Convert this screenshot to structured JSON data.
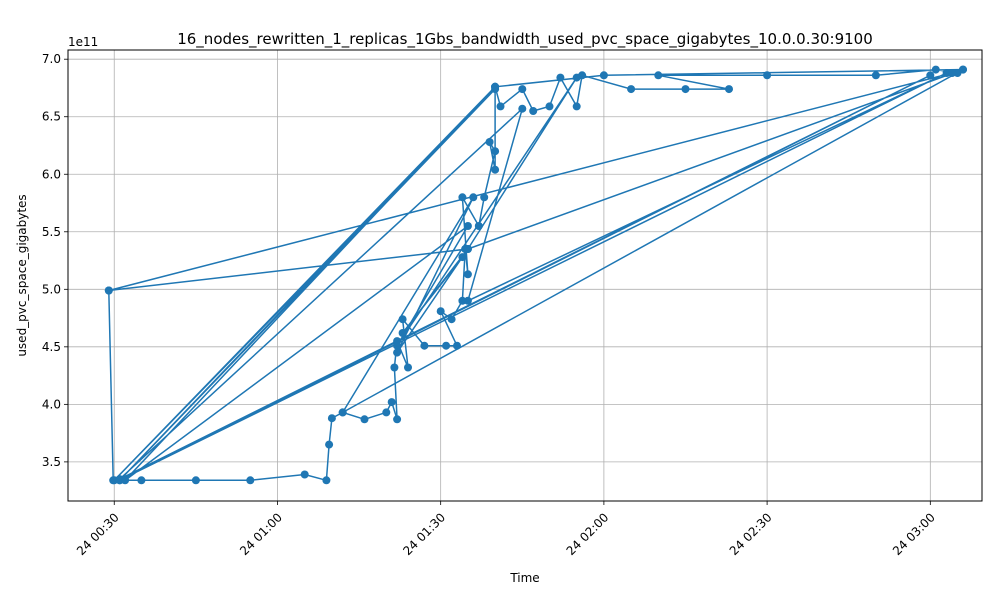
{
  "chart_data": {
    "type": "line",
    "title": "16_nodes_rewritten_1_replicas_1Gbs_bandwidth_used_pvc_space_gigabytes_10.0.0.30:9100",
    "xlabel": "Time",
    "ylabel": "used_pvc_space_gigabytes",
    "y_offset_text": "1e11",
    "y_scale": 100000000000.0,
    "xlim": [
      "00:21:30",
      "03:09:30"
    ],
    "ylim": [
      3.16,
      7.08
    ],
    "grid": true,
    "x_ticks": [
      {
        "t": "00:30",
        "label": "24 00:30"
      },
      {
        "t": "01:00",
        "label": "24 01:00"
      },
      {
        "t": "01:30",
        "label": "24 01:30"
      },
      {
        "t": "02:00",
        "label": "24 02:00"
      },
      {
        "t": "02:30",
        "label": "24 02:30"
      },
      {
        "t": "03:00",
        "label": "24 03:00"
      }
    ],
    "y_ticks": [
      {
        "v": 3.5,
        "label": "3.5"
      },
      {
        "v": 4.0,
        "label": "4.0"
      },
      {
        "v": 4.5,
        "label": "4.5"
      },
      {
        "v": 5.0,
        "label": "5.0"
      },
      {
        "v": 5.5,
        "label": "5.5"
      },
      {
        "v": 6.0,
        "label": "6.0"
      },
      {
        "v": 6.5,
        "label": "6.5"
      },
      {
        "v": 7.0,
        "label": "7.0"
      }
    ],
    "series": [
      {
        "color": "#1f77b4",
        "marker": "circle",
        "points": [
          [
            "00:29:00",
            4.99
          ],
          [
            "00:29:48",
            3.34
          ],
          [
            "00:35:00",
            3.34
          ],
          [
            "00:45:00",
            3.34
          ],
          [
            "00:55:00",
            3.34
          ],
          [
            "01:05:00",
            3.39
          ],
          [
            "01:09:00",
            3.34
          ],
          [
            "01:09:30",
            3.65
          ],
          [
            "01:10:00",
            3.88
          ],
          [
            "01:12:00",
            3.93
          ],
          [
            "01:16:00",
            3.87
          ],
          [
            "01:20:00",
            3.93
          ],
          [
            "01:21:00",
            4.02
          ],
          [
            "01:22:00",
            3.87
          ],
          [
            "01:21:30",
            4.32
          ],
          [
            "01:22:00",
            4.55
          ],
          [
            "01:24:00",
            4.32
          ],
          [
            "01:23:00",
            4.74
          ],
          [
            "01:27:00",
            4.51
          ],
          [
            "01:31:00",
            4.51
          ],
          [
            "01:33:00",
            4.51
          ],
          [
            "01:30:00",
            4.81
          ],
          [
            "01:32:00",
            4.74
          ],
          [
            "01:34:00",
            4.9
          ],
          [
            "01:34:30",
            5.35
          ],
          [
            "01:35:00",
            5.13
          ],
          [
            "01:34:00",
            5.8
          ],
          [
            "01:37:00",
            5.55
          ],
          [
            "01:38:00",
            5.8
          ],
          [
            "01:40:00",
            6.2
          ],
          [
            "01:39:00",
            6.28
          ],
          [
            "01:40:00",
            6.04
          ],
          [
            "01:40:00",
            6.76
          ],
          [
            "01:41:00",
            6.59
          ],
          [
            "01:45:00",
            6.74
          ],
          [
            "01:47:00",
            6.55
          ],
          [
            "01:50:00",
            6.59
          ],
          [
            "01:52:00",
            6.84
          ],
          [
            "01:55:00",
            6.59
          ],
          [
            "01:56:00",
            6.86
          ],
          [
            "02:05:00",
            6.74
          ],
          [
            "02:15:00",
            6.74
          ],
          [
            "02:23:00",
            6.74
          ],
          [
            "02:10:00",
            6.86
          ],
          [
            "02:30:00",
            6.86
          ],
          [
            "02:50:00",
            6.86
          ],
          [
            "03:01:00",
            6.91
          ],
          [
            "03:05:00",
            6.88
          ],
          [
            "03:06:00",
            6.91
          ],
          [
            "02:00:00",
            6.86
          ],
          [
            "01:40:00",
            6.76
          ],
          [
            "00:30:00",
            3.34
          ],
          [
            "01:40:00",
            6.74
          ],
          [
            "00:31:00",
            3.34
          ],
          [
            "03:03:00",
            6.88
          ],
          [
            "01:35:00",
            4.9
          ],
          [
            "01:45:00",
            6.57
          ],
          [
            "00:31:00",
            3.35
          ],
          [
            "03:00:00",
            6.86
          ],
          [
            "00:31:00",
            3.34
          ],
          [
            "01:40:00",
            6.76
          ],
          [
            "00:32:00",
            3.34
          ],
          [
            "01:35:00",
            5.55
          ],
          [
            "01:22:00",
            4.51
          ],
          [
            "01:55:00",
            6.84
          ],
          [
            "01:35:00",
            5.35
          ],
          [
            "03:06:00",
            6.91
          ],
          [
            "01:12:00",
            3.93
          ],
          [
            "01:36:00",
            5.8
          ],
          [
            "01:22:00",
            4.45
          ],
          [
            "01:34:00",
            5.28
          ],
          [
            "01:23:00",
            4.62
          ],
          [
            "01:35:00",
            5.35
          ],
          [
            "00:29:00",
            4.99
          ],
          [
            "03:04:00",
            6.88
          ]
        ]
      }
    ]
  }
}
